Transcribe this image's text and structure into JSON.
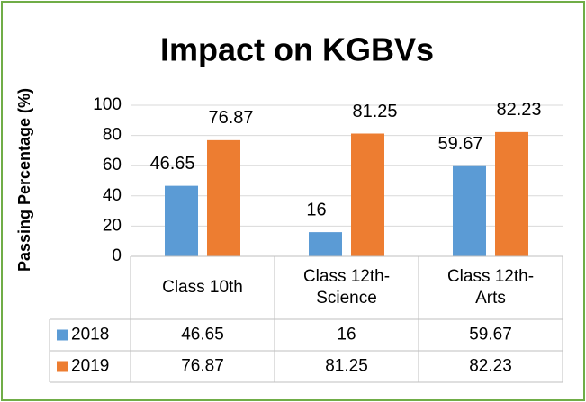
{
  "chart_data": {
    "type": "bar",
    "title": "Impact on KGBVs",
    "y_label": "Passing Percentage (%)",
    "categories": [
      "Class 10th",
      "Class 12th-Science",
      "Class 12th-Arts"
    ],
    "series": [
      {
        "name": "2018",
        "color": "#5b9bd5",
        "values": [
          46.65,
          16,
          59.67
        ]
      },
      {
        "name": "2019",
        "color": "#ed7d31",
        "values": [
          76.87,
          81.25,
          82.23
        ]
      }
    ],
    "ylim": [
      0,
      100
    ],
    "yticks": [
      0,
      20,
      40,
      60,
      80,
      100
    ],
    "grid": true,
    "data_table": true
  }
}
